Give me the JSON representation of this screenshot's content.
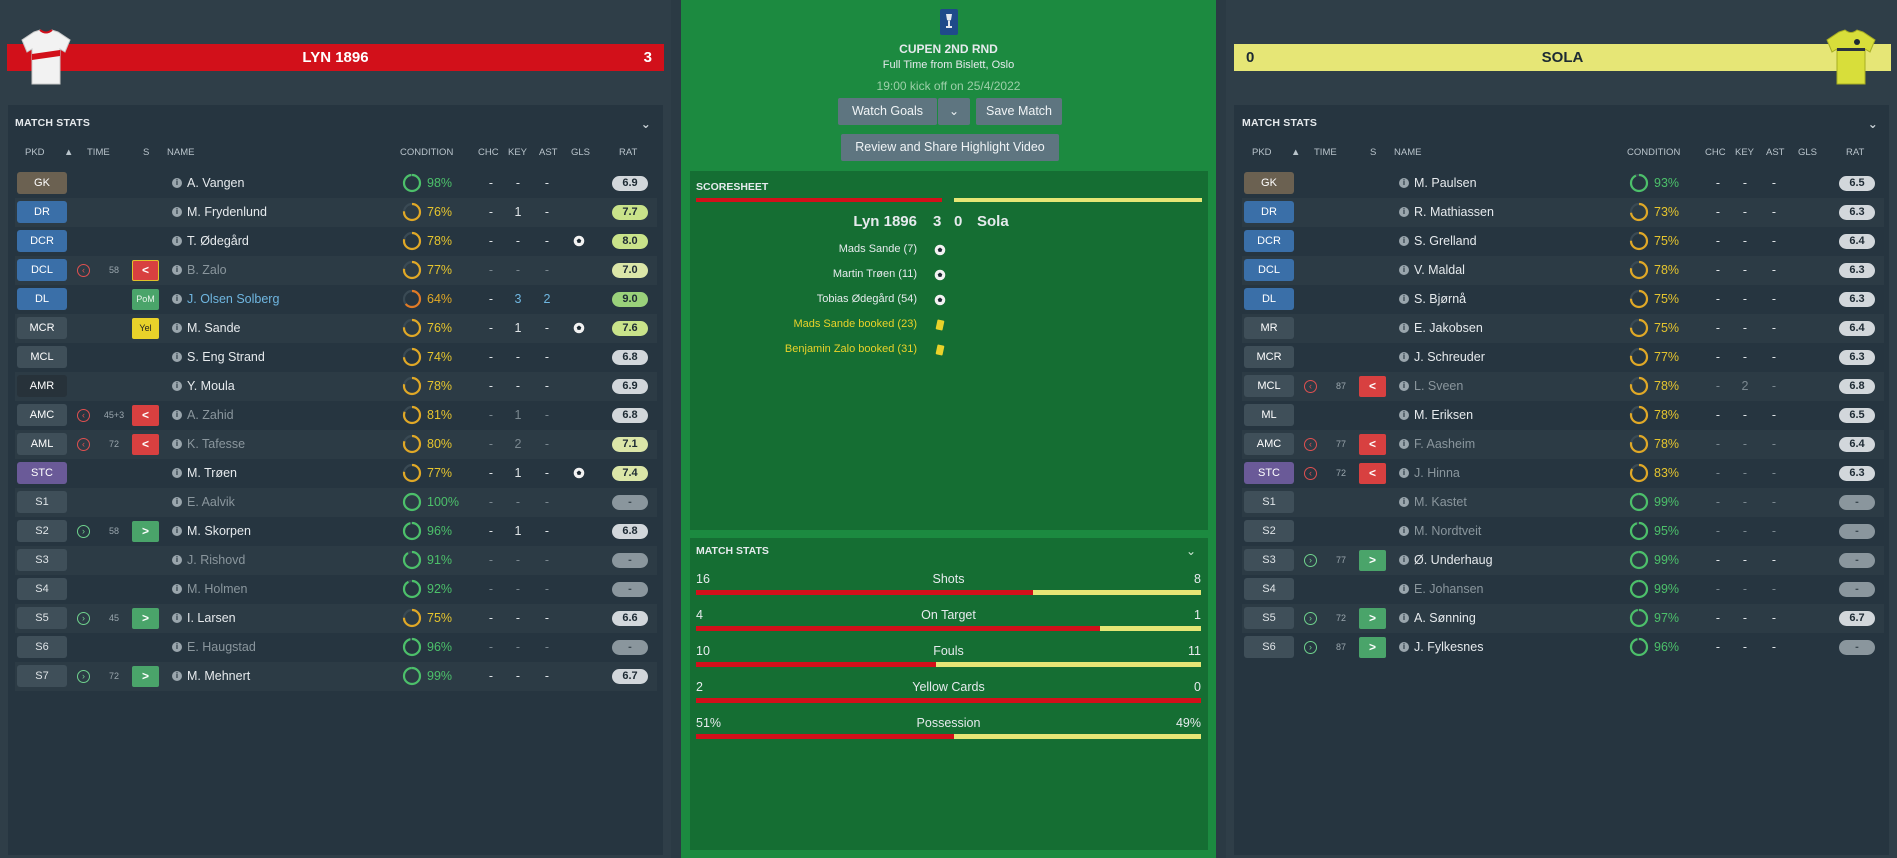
{
  "home": {
    "name": "LYN 1896",
    "score": "3",
    "stats_title": "MATCH STATS",
    "columns": {
      "pkd": "PKD",
      "time": "TIME",
      "s": "S",
      "name": "NAME",
      "condition": "CONDITION",
      "chc": "CHC",
      "key": "KEY",
      "ast": "AST",
      "gls": "GLS",
      "rat": "RAT"
    },
    "players": [
      {
        "pos": "GK",
        "name": "A. Vangen",
        "cond": "98%",
        "chc": "-",
        "key": "-",
        "ast": "-",
        "rat": "6.9",
        "ring": 0.98
      },
      {
        "pos": "DR",
        "name": "M. Frydenlund",
        "cond": "76%",
        "chc": "-",
        "key": "1",
        "ast": "-",
        "rat": "7.7",
        "ring": 0.76
      },
      {
        "pos": "DCR",
        "name": "T. Ødegård",
        "cond": "78%",
        "chc": "-",
        "key": "-",
        "ast": "-",
        "rat": "8.0",
        "ring": 0.78,
        "goal": true
      },
      {
        "pos": "DCL",
        "time": "58",
        "sub": "out",
        "name": "B. Zalo",
        "cond": "77%",
        "chc": "-",
        "key": "-",
        "ast": "-",
        "rat": "7.0",
        "ring": 0.77
      },
      {
        "pos": "DL",
        "badge": "PoM",
        "name": "J. Olsen Solberg",
        "cond": "64%",
        "chc": "-",
        "key": "3",
        "ast": "2",
        "rat": "9.0",
        "ring": 0.64
      },
      {
        "pos": "MCR",
        "badge": "Yel",
        "name": "M. Sande",
        "cond": "76%",
        "chc": "-",
        "key": "1",
        "ast": "-",
        "rat": "7.6",
        "ring": 0.76,
        "goal": true
      },
      {
        "pos": "MCL",
        "name": "S. Eng Strand",
        "cond": "74%",
        "chc": "-",
        "key": "-",
        "ast": "-",
        "rat": "6.8",
        "ring": 0.74
      },
      {
        "pos": "AMR",
        "name": "Y. Moula",
        "cond": "78%",
        "chc": "-",
        "key": "-",
        "ast": "-",
        "rat": "6.9",
        "ring": 0.78
      },
      {
        "pos": "AMC",
        "time": "45+3",
        "sub": "out",
        "name": "A. Zahid",
        "cond": "81%",
        "chc": "-",
        "key": "1",
        "ast": "-",
        "rat": "6.8",
        "ring": 0.81
      },
      {
        "pos": "AML",
        "time": "72",
        "sub": "out",
        "name": "K. Tafesse",
        "cond": "80%",
        "chc": "-",
        "key": "2",
        "ast": "-",
        "rat": "7.1",
        "ring": 0.8
      },
      {
        "pos": "STC",
        "name": "M. Trøen",
        "cond": "77%",
        "chc": "-",
        "key": "1",
        "ast": "-",
        "rat": "7.4",
        "ring": 0.77,
        "goal": true
      },
      {
        "pos": "S1",
        "name": "E. Aalvik",
        "cond": "100%",
        "chc": "-",
        "key": "-",
        "ast": "-",
        "rat": "-",
        "ring": 1.0
      },
      {
        "pos": "S2",
        "time": "58",
        "sub": "in",
        "name": "M. Skorpen",
        "cond": "96%",
        "chc": "-",
        "key": "1",
        "ast": "-",
        "rat": "6.8",
        "ring": 0.96
      },
      {
        "pos": "S3",
        "name": "J. Rishovd",
        "cond": "91%",
        "chc": "-",
        "key": "-",
        "ast": "-",
        "rat": "-",
        "ring": 0.91
      },
      {
        "pos": "S4",
        "name": "M. Holmen",
        "cond": "92%",
        "chc": "-",
        "key": "-",
        "ast": "-",
        "rat": "-",
        "ring": 0.92
      },
      {
        "pos": "S5",
        "time": "45",
        "sub": "in",
        "name": "I. Larsen",
        "cond": "75%",
        "chc": "-",
        "key": "-",
        "ast": "-",
        "rat": "6.6",
        "ring": 0.75
      },
      {
        "pos": "S6",
        "name": "E. Haugstad",
        "cond": "96%",
        "chc": "-",
        "key": "-",
        "ast": "-",
        "rat": "-",
        "ring": 0.96
      },
      {
        "pos": "S7",
        "time": "72",
        "sub": "in",
        "name": "M. Mehnert",
        "cond": "99%",
        "chc": "-",
        "key": "-",
        "ast": "-",
        "rat": "6.7",
        "ring": 0.99
      }
    ]
  },
  "away": {
    "name": "SOLA",
    "score": "0",
    "stats_title": "MATCH STATS",
    "columns": {
      "pkd": "PKD",
      "time": "TIME",
      "s": "S",
      "name": "NAME",
      "condition": "CONDITION",
      "chc": "CHC",
      "key": "KEY",
      "ast": "AST",
      "gls": "GLS",
      "rat": "RAT"
    },
    "players": [
      {
        "pos": "GK",
        "name": "M. Paulsen",
        "cond": "93%",
        "chc": "-",
        "key": "-",
        "ast": "-",
        "rat": "6.5",
        "ring": 0.93
      },
      {
        "pos": "DR",
        "name": "R. Mathiassen",
        "cond": "73%",
        "chc": "-",
        "key": "-",
        "ast": "-",
        "rat": "6.3",
        "ring": 0.73
      },
      {
        "pos": "DCR",
        "name": "S. Grelland",
        "cond": "75%",
        "chc": "-",
        "key": "-",
        "ast": "-",
        "rat": "6.4",
        "ring": 0.75
      },
      {
        "pos": "DCL",
        "name": "V. Maldal",
        "cond": "78%",
        "chc": "-",
        "key": "-",
        "ast": "-",
        "rat": "6.3",
        "ring": 0.78
      },
      {
        "pos": "DL",
        "name": "S. Bjørnå",
        "cond": "75%",
        "chc": "-",
        "key": "-",
        "ast": "-",
        "rat": "6.3",
        "ring": 0.75
      },
      {
        "pos": "MR",
        "name": "E. Jakobsen",
        "cond": "75%",
        "chc": "-",
        "key": "-",
        "ast": "-",
        "rat": "6.4",
        "ring": 0.75
      },
      {
        "pos": "MCR",
        "name": "J. Schreuder",
        "cond": "77%",
        "chc": "-",
        "key": "-",
        "ast": "-",
        "rat": "6.3",
        "ring": 0.77
      },
      {
        "pos": "MCL",
        "time": "87",
        "sub": "out",
        "name": "L. Sveen",
        "cond": "78%",
        "chc": "-",
        "key": "2",
        "ast": "-",
        "rat": "6.8",
        "ring": 0.78
      },
      {
        "pos": "ML",
        "name": "M. Eriksen",
        "cond": "78%",
        "chc": "-",
        "key": "-",
        "ast": "-",
        "rat": "6.5",
        "ring": 0.78
      },
      {
        "pos": "AMC",
        "time": "77",
        "sub": "out",
        "name": "F. Aasheim",
        "cond": "78%",
        "chc": "-",
        "key": "-",
        "ast": "-",
        "rat": "6.4",
        "ring": 0.78
      },
      {
        "pos": "STC",
        "time": "72",
        "sub": "out",
        "name": "J. Hinna",
        "cond": "83%",
        "chc": "-",
        "key": "-",
        "ast": "-",
        "rat": "6.3",
        "ring": 0.83
      },
      {
        "pos": "S1",
        "name": "M. Kastet",
        "cond": "99%",
        "chc": "-",
        "key": "-",
        "ast": "-",
        "rat": "-",
        "ring": 0.99
      },
      {
        "pos": "S2",
        "name": "M. Nordtveit",
        "cond": "95%",
        "chc": "-",
        "key": "-",
        "ast": "-",
        "rat": "-",
        "ring": 0.95
      },
      {
        "pos": "S3",
        "time": "77",
        "sub": "in",
        "name": "Ø. Underhaug",
        "cond": "99%",
        "chc": "-",
        "key": "-",
        "ast": "-",
        "rat": "-",
        "ring": 0.99
      },
      {
        "pos": "S4",
        "name": "E. Johansen",
        "cond": "99%",
        "chc": "-",
        "key": "-",
        "ast": "-",
        "rat": "-",
        "ring": 0.99
      },
      {
        "pos": "S5",
        "time": "72",
        "sub": "in",
        "name": "A. Sønning",
        "cond": "97%",
        "chc": "-",
        "key": "-",
        "ast": "-",
        "rat": "6.7",
        "ring": 0.97
      },
      {
        "pos": "S6",
        "time": "87",
        "sub": "in",
        "name": "J. Fylkesnes",
        "cond": "96%",
        "chc": "-",
        "key": "-",
        "ast": "-",
        "rat": "-",
        "ring": 0.96
      }
    ]
  },
  "centre": {
    "competition": "CUPEN 2ND RND",
    "venue": "Full Time from Bislett, Oslo",
    "kickoff": "19:00 kick off on 25/4/2022",
    "watch_goals": "Watch Goals",
    "save_match": "Save Match",
    "review": "Review and Share Highlight Video",
    "scoresheet_title": "SCORESHEET",
    "home_name": "Lyn 1896",
    "home_score": "3",
    "away_score": "0",
    "away_name": "Sola",
    "events": [
      {
        "text": "Mads Sande (7)",
        "type": "goal"
      },
      {
        "text": "Martin Trøen (11)",
        "type": "goal"
      },
      {
        "text": "Tobias Ødegård (54)",
        "type": "goal"
      },
      {
        "text": "Mads Sande booked (23)",
        "type": "booking"
      },
      {
        "text": "Benjamin Zalo booked (31)",
        "type": "booking"
      }
    ],
    "stats_title": "MATCH STATS",
    "stats": [
      {
        "home": "16",
        "label": "Shots",
        "away": "8",
        "home_share": 0.667
      },
      {
        "home": "4",
        "label": "On Target",
        "away": "1",
        "home_share": 0.8
      },
      {
        "home": "10",
        "label": "Fouls",
        "away": "11",
        "home_share": 0.476
      },
      {
        "home": "2",
        "label": "Yellow Cards",
        "away": "0",
        "home_share": 1.0
      },
      {
        "home": "51%",
        "label": "Possession",
        "away": "49%",
        "home_share": 0.51
      }
    ]
  },
  "colors": {
    "home": "#d2101a",
    "away": "#e6e676",
    "pitch": "#1c8a40",
    "panel": "#263540"
  }
}
